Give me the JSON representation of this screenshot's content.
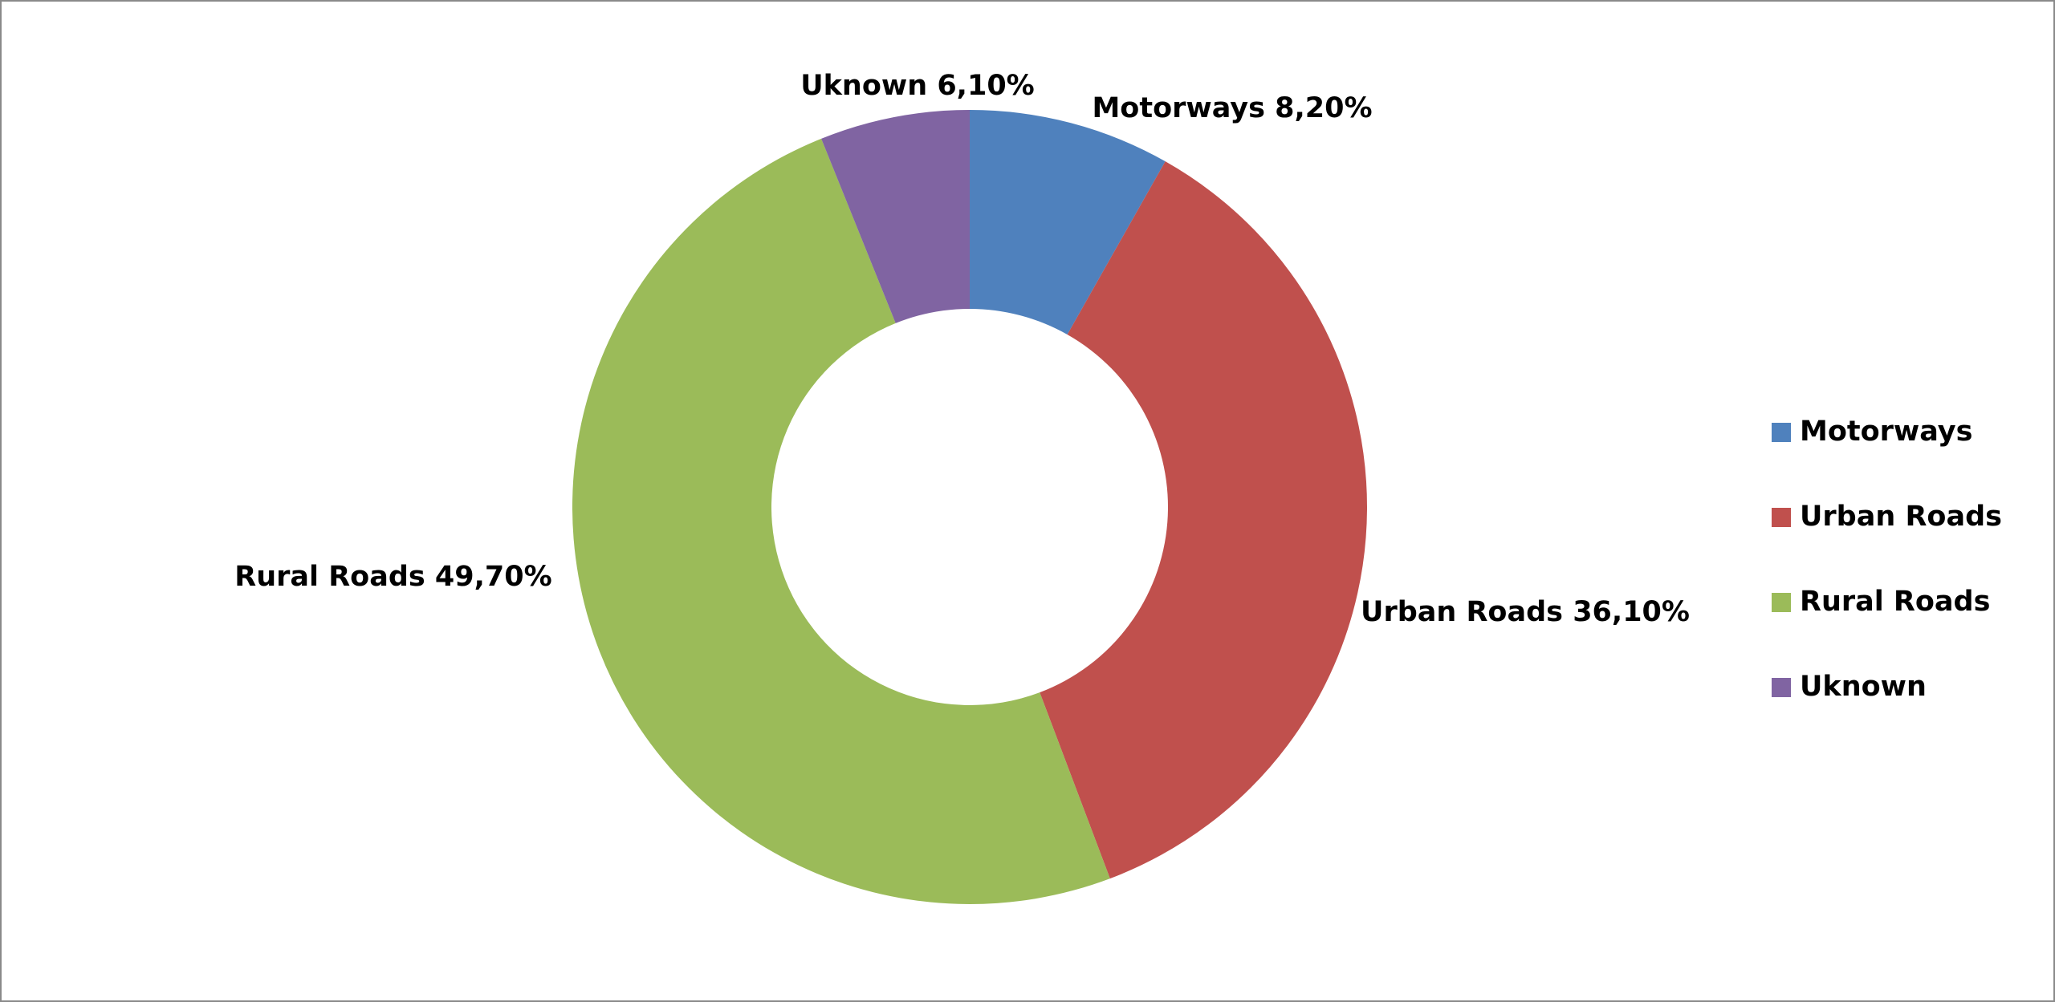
{
  "chart_data": {
    "type": "donut",
    "categories": [
      "Motorways",
      "Urban Roads",
      "Rural Roads",
      "Uknown"
    ],
    "values": [
      8.2,
      36.1,
      49.7,
      6.1
    ],
    "value_labels": [
      "8,20%",
      "36,10%",
      "49,70%",
      "6,10%"
    ],
    "colors": [
      "#4f81bd",
      "#c0504d",
      "#9bbb59",
      "#8064a2"
    ],
    "legend": "right"
  }
}
